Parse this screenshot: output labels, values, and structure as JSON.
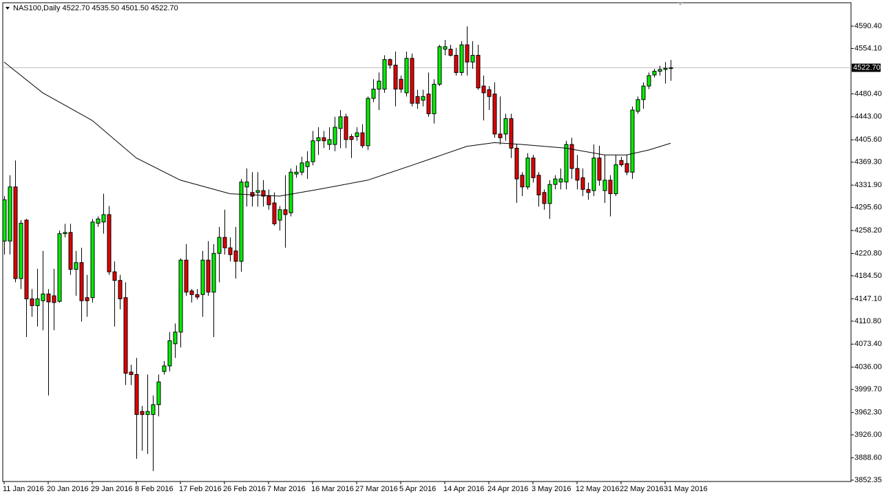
{
  "chart_data": {
    "type": "candlestick",
    "symbol": "NAS100,Daily",
    "header_ohlc": [
      "4522.70",
      "4535.50",
      "4501.50",
      "4522.70"
    ],
    "up_color": "#00ee00",
    "down_color": "#e00000",
    "categories": [
      "11 Jan 2016",
      null,
      null,
      null,
      null,
      null,
      null,
      null,
      "20 Jan 2016",
      null,
      null,
      null,
      null,
      null,
      null,
      null,
      "29 Jan 2016",
      null,
      null,
      null,
      null,
      null,
      null,
      null,
      "8 Feb 2016",
      null,
      null,
      null,
      null,
      null,
      null,
      null,
      "17 Feb 2016",
      null,
      null,
      null,
      null,
      null,
      null,
      null,
      "26 Feb 2016",
      null,
      null,
      null,
      null,
      null,
      null,
      null,
      "7 Mar 2016",
      null,
      null,
      null,
      null,
      null,
      null,
      null,
      "16 Mar 2016",
      null,
      null,
      null,
      null,
      null,
      null,
      null,
      "27 Mar 2016",
      null,
      null,
      null,
      null,
      null,
      null,
      null,
      "5 Apr 2016",
      null,
      null,
      null,
      null,
      null,
      null,
      null,
      "14 Apr 2016",
      null,
      null,
      null,
      null,
      null,
      null,
      null,
      "24 Apr 2016",
      null,
      null,
      null,
      null,
      null,
      null,
      null,
      "3 May 2016",
      null,
      null,
      null,
      null,
      null,
      null,
      null,
      "12 May 2016",
      null,
      null,
      null,
      null,
      null,
      null,
      null,
      "22 May 2016",
      null,
      null,
      null,
      null,
      null,
      null,
      null,
      "31 May 2016",
      null
    ],
    "open": [
      4241,
      4241,
      4329,
      4180,
      4275,
      4147,
      4136,
      4144,
      4155,
      4152,
      4143,
      4253,
      4255,
      4195,
      4206,
      4149,
      4149,
      4270,
      4272,
      4284,
      4191,
      4177,
      4149,
      4028,
      4024,
      3964,
      3959,
      3959,
      3975,
      4029,
      4038,
      4074,
      4093,
      4210,
      4160,
      4154,
      4154,
      4210,
      4158,
      4221,
      4247,
      4230,
      4225,
      4208,
      4329,
      4320,
      4320,
      4323,
      4314,
      4303,
      4275,
      4292,
      4287,
      4350,
      4353,
      4362,
      4370,
      4404,
      4409,
      4398,
      4398,
      4424,
      4443,
      4411,
      4411,
      4417,
      4396,
      4473,
      4488,
      4488,
      4536,
      4527,
      4504,
      4482,
      4538,
      4476,
      4470,
      4480,
      4448,
      4496,
      4553,
      4553,
      4543,
      4515,
      4560,
      4532,
      4543,
      4493,
      4487,
      4480,
      4415,
      4415,
      4440,
      4392,
      4348,
      4329,
      4376,
      4348,
      4320,
      4302,
      4333,
      4337,
      4337,
      4398,
      4359,
      4344,
      4325,
      4323,
      4376,
      4323,
      4340,
      4318,
      4372,
      4367,
      4353,
      4452,
      4471,
      4493,
      4511,
      4517,
      4520,
      4522.7
    ],
    "high": [
      4314,
      4348,
      4372,
      4275,
      4277,
      4163,
      4196,
      4225,
      4163,
      4196,
      4258,
      4269,
      4269,
      4225,
      4230,
      4186,
      4277,
      4281,
      4318,
      4298,
      4208,
      4186,
      4174,
      4040,
      4051,
      3973,
      4024,
      3990,
      4024,
      4046,
      4093,
      4107,
      4213,
      4236,
      4163,
      4163,
      4225,
      4241,
      4236,
      4264,
      4292,
      4247,
      4264,
      4342,
      4359,
      4353,
      4353,
      4340,
      4325,
      4320,
      4298,
      4348,
      4359,
      4364,
      4378,
      4387,
      4420,
      4426,
      4420,
      4426,
      4443,
      4454,
      4448,
      4415,
      4426,
      4431,
      4476,
      4504,
      4515,
      4543,
      4538,
      4549,
      4510,
      4549,
      4546,
      4487,
      4487,
      4515,
      4504,
      4560,
      4568,
      4560,
      4555,
      4566,
      4590,
      4566,
      4560,
      4510,
      4493,
      4499,
      4476,
      4448,
      4448,
      4398,
      4353,
      4384,
      4381,
      4353,
      4325,
      4340,
      4348,
      4359,
      4404,
      4409,
      4381,
      4359,
      4336,
      4398,
      4396,
      4381,
      4348,
      4381,
      4378,
      4381,
      4460,
      4476,
      4499,
      4515,
      4521,
      4526,
      4532,
      4535.5
    ],
    "low": [
      4219,
      4219,
      4174,
      4163,
      4085,
      4118,
      4102,
      4096,
      3990,
      4096,
      4141,
      4247,
      4186,
      4152,
      4110,
      4118,
      4141,
      4264,
      4253,
      4186,
      4102,
      4130,
      4007,
      4007,
      3887,
      3900,
      3895,
      3867,
      3956,
      4024,
      4029,
      4051,
      4068,
      4152,
      4141,
      4146,
      4118,
      4152,
      4085,
      4174,
      4219,
      4208,
      4180,
      4191,
      4297,
      4297,
      4297,
      4297,
      4292,
      4266,
      4258,
      4230,
      4281,
      4344,
      4348,
      4342,
      4364,
      4381,
      4392,
      4389,
      4387,
      4392,
      4392,
      4376,
      4404,
      4392,
      4389,
      4467,
      4454,
      4482,
      4521,
      4460,
      4482,
      4476,
      4460,
      4456,
      4460,
      4443,
      4432,
      4493,
      4543,
      4541,
      4510,
      4510,
      4510,
      4521,
      4487,
      4437,
      4454,
      4409,
      4398,
      4404,
      4376,
      4303,
      4314,
      4325,
      4336,
      4297,
      4292,
      4277,
      4325,
      4325,
      4325,
      4342,
      4325,
      4314,
      4308,
      4314,
      4331,
      4303,
      4281,
      4314,
      4362,
      4348,
      4342,
      4448,
      4456,
      4488,
      4507,
      4510,
      4497,
      4501.5
    ],
    "close": [
      4308,
      4329,
      4180,
      4270,
      4147,
      4136,
      4147,
      4155,
      4142,
      4141,
      4253,
      4255,
      4195,
      4206,
      4144,
      4144,
      4272,
      4277,
      4284,
      4191,
      4177,
      4147,
      4026,
      4024,
      3959,
      3959,
      3964,
      3975,
      4012,
      4038,
      4079,
      4093,
      4210,
      4158,
      4154,
      4150,
      4210,
      4158,
      4221,
      4247,
      4230,
      4219,
      4208,
      4337,
      4337,
      4314,
      4323,
      4314,
      4300,
      4269,
      4292,
      4284,
      4353,
      4353,
      4368,
      4370,
      4404,
      4409,
      4404,
      4406,
      4426,
      4443,
      4406,
      4406,
      4417,
      4396,
      4473,
      4488,
      4501,
      4536,
      4527,
      4488,
      4488,
      4538,
      4465,
      4465,
      4476,
      4448,
      4496,
      4557,
      4557,
      4543,
      4515,
      4560,
      4532,
      4543,
      4490,
      4482,
      4476,
      4415,
      4409,
      4440,
      4392,
      4342,
      4329,
      4376,
      4344,
      4316,
      4302,
      4333,
      4342,
      4342,
      4398,
      4359,
      4340,
      4325,
      4320,
      4376,
      4340,
      4340,
      4318,
      4365,
      4365,
      4353,
      4454,
      4471,
      4493,
      4510,
      4517,
      4520,
      4522,
      4522.7
    ],
    "moving_average": {
      "color": "#000000",
      "x": [
        0,
        7,
        16,
        24,
        32,
        41,
        50,
        57,
        66,
        74,
        84,
        89,
        94,
        102,
        109,
        113,
        117,
        121
      ],
      "values": [
        4532,
        4482,
        4437,
        4376,
        4340,
        4318,
        4314,
        4325,
        4340,
        4364,
        4395,
        4401,
        4398,
        4392,
        4381,
        4381,
        4389,
        4400
      ]
    },
    "last_price": {
      "value": 4522.7,
      "label": "4522.70"
    },
    "ylim": [
      3850.11,
      4628.42
    ],
    "yticks": [
      {
        "value": 4590.4,
        "label": "4590.40"
      },
      {
        "value": 4554.1,
        "label": "4554.10"
      },
      {
        "value": 4480.4,
        "label": "4480.40"
      },
      {
        "value": 4443,
        "label": "4443.00"
      },
      {
        "value": 4405.6,
        "label": "4405.60"
      },
      {
        "value": 4369.3,
        "label": "4369.30"
      },
      {
        "value": 4331.9,
        "label": "4331.90"
      },
      {
        "value": 4295.6,
        "label": "4295.60"
      },
      {
        "value": 4258.2,
        "label": "4258.20"
      },
      {
        "value": 4220.8,
        "label": "4220.80"
      },
      {
        "value": 4184.5,
        "label": "4184.50"
      },
      {
        "value": 4147.1,
        "label": "4147.10"
      },
      {
        "value": 4110.8,
        "label": "4110.80"
      },
      {
        "value": 4073.4,
        "label": "4073.40"
      },
      {
        "value": 4036,
        "label": "4036.00"
      },
      {
        "value": 3999.7,
        "label": "3999.70"
      },
      {
        "value": 3962.3,
        "label": "3962.30"
      },
      {
        "value": 3926,
        "label": "3926.00"
      },
      {
        "value": 3888.6,
        "label": "3888.60"
      },
      {
        "value": 3852.35,
        "label": "3852.35"
      }
    ]
  }
}
